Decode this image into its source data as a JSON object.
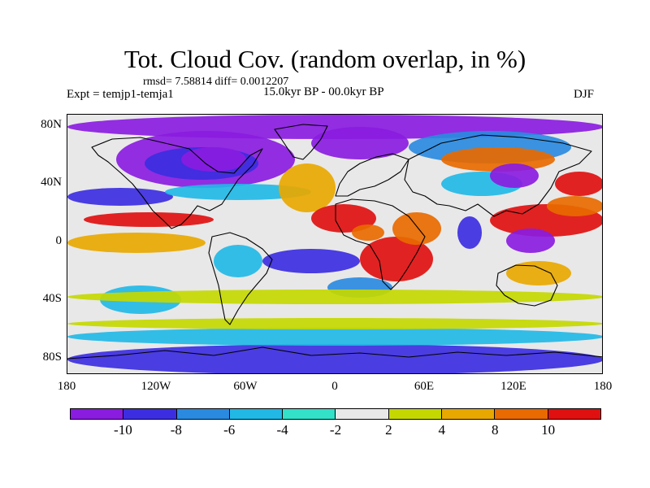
{
  "header": {
    "title": "Tot. Cloud Cov. (random overlap, in %)",
    "rmsd_line": "rmsd= 7.58814 diff= 0.0012207",
    "experiment": "Expt = temjp1-temja1",
    "period": "15.0kyr BP - 00.0kyr BP",
    "season": "DJF"
  },
  "axes": {
    "y_ticks": [
      "80N",
      "40N",
      "0",
      "40S",
      "80S"
    ],
    "x_ticks": [
      "180",
      "120W",
      "60W",
      "0",
      "60E",
      "120E",
      "180"
    ]
  },
  "colorbar": {
    "colors": [
      "#8a1ce0",
      "#3c2ee0",
      "#2a8ae0",
      "#22b8e6",
      "#33e0c8",
      "#e8e8e8",
      "#c4d800",
      "#e8a800",
      "#e86a00",
      "#e01010"
    ],
    "labels": [
      "-10",
      "-8",
      "-6",
      "-4",
      "-2",
      "2",
      "4",
      "8",
      "10"
    ]
  },
  "map": {
    "background_color": "#e8e8e8",
    "coastline_color": "#000000",
    "lon_range": [
      -180,
      180
    ],
    "lat_range": [
      -90,
      90
    ]
  }
}
